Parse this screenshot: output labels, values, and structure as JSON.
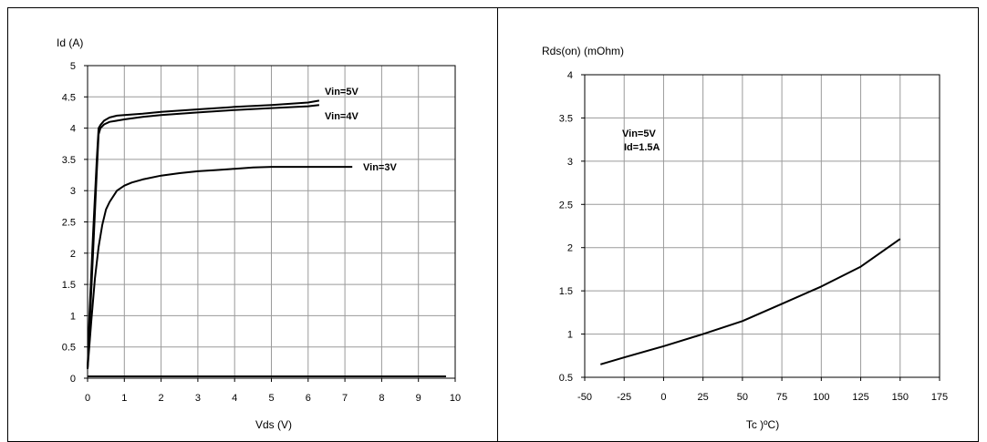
{
  "chart_data": [
    {
      "type": "line",
      "title": "",
      "ylabel": "Id (A)",
      "xlabel": "Vds (V)",
      "xlim": [
        0,
        10
      ],
      "ylim": [
        0,
        5
      ],
      "xticks": [
        "0",
        "1",
        "2",
        "3",
        "4",
        "5",
        "6",
        "7",
        "8",
        "9",
        "10"
      ],
      "yticks": [
        "0",
        "0.5",
        "1",
        "1.5",
        "2",
        "2.5",
        "3",
        "3.5",
        "4",
        "4.5",
        "5"
      ],
      "grid": true,
      "series": [
        {
          "name": "Vin=5V",
          "x": [
            0,
            0.05,
            0.15,
            0.25,
            0.3,
            0.35,
            0.45,
            0.6,
            0.8,
            1.0,
            1.5,
            2.0,
            3.0,
            4.0,
            5.0,
            6.0,
            6.3
          ],
          "y": [
            0.15,
            1.0,
            2.3,
            3.5,
            4.0,
            4.05,
            4.12,
            4.17,
            4.2,
            4.21,
            4.23,
            4.26,
            4.3,
            4.34,
            4.37,
            4.41,
            4.44
          ]
        },
        {
          "name": "Vin=4V",
          "x": [
            0,
            0.05,
            0.15,
            0.25,
            0.3,
            0.35,
            0.45,
            0.6,
            0.8,
            1.0,
            1.5,
            2.0,
            3.0,
            4.0,
            5.0,
            6.0,
            6.3
          ],
          "y": [
            0.15,
            0.75,
            2.0,
            3.3,
            3.9,
            4.0,
            4.06,
            4.1,
            4.12,
            4.14,
            4.18,
            4.21,
            4.25,
            4.29,
            4.32,
            4.35,
            4.37
          ]
        },
        {
          "name": "Vin=3V",
          "x": [
            0,
            0.1,
            0.2,
            0.3,
            0.4,
            0.5,
            0.6,
            0.8,
            1.0,
            1.2,
            1.5,
            2.0,
            2.5,
            3.0,
            3.5,
            4.0,
            4.5,
            5.0,
            5.5,
            6.0,
            7.0,
            7.2
          ],
          "y": [
            0.15,
            0.9,
            1.6,
            2.1,
            2.45,
            2.7,
            2.82,
            3.0,
            3.08,
            3.13,
            3.18,
            3.24,
            3.28,
            3.31,
            3.33,
            3.35,
            3.37,
            3.38,
            3.38,
            3.38,
            3.38,
            3.38
          ]
        }
      ],
      "baseline": {
        "x": [
          0,
          9.75
        ],
        "y": [
          0.03,
          0.03
        ]
      }
    },
    {
      "type": "line",
      "title": "",
      "ylabel": "Rds(on) (mOhm)",
      "xlabel": "Tc )ºC)",
      "xlim": [
        -50,
        175
      ],
      "ylim": [
        0.5,
        4
      ],
      "xticks": [
        "-50",
        "-25",
        "0",
        "25",
        "50",
        "75",
        "100",
        "125",
        "150",
        "175"
      ],
      "yticks": [
        "0.5",
        "1",
        "1.5",
        "2",
        "2.5",
        "3",
        "3.5",
        "4"
      ],
      "grid": true,
      "annotation": [
        "Vin=5V",
        "Id=1.5A"
      ],
      "series": [
        {
          "x": [
            -40,
            -25,
            0,
            25,
            50,
            75,
            100,
            125,
            150
          ],
          "y": [
            0.65,
            0.73,
            0.86,
            1.0,
            1.15,
            1.35,
            1.55,
            1.78,
            2.1
          ]
        }
      ]
    }
  ]
}
